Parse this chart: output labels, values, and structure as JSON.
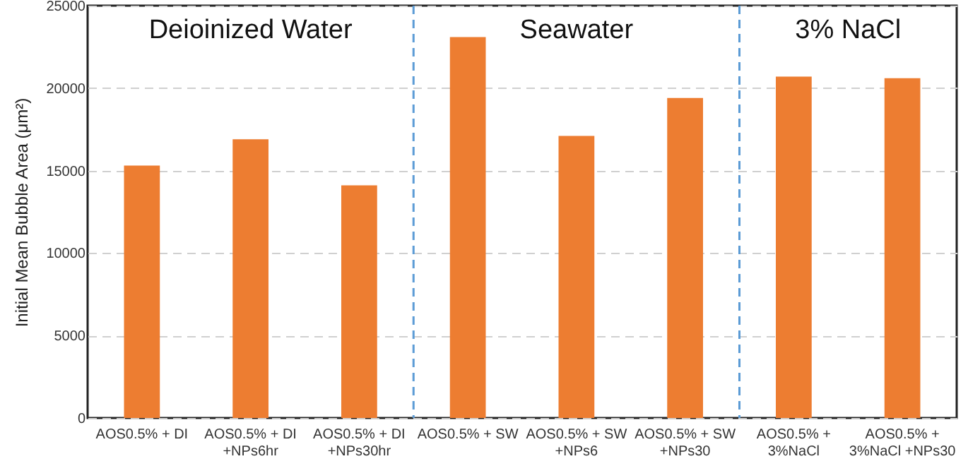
{
  "chart_data": {
    "type": "bar",
    "ylabel": "Initial Mean Bubble Area (μm²)",
    "categories": [
      "AOS0.5% + DI",
      "AOS0.5% + DI\n+NPs6hr",
      "AOS0.5% + DI\n+NPs30hr",
      "AOS0.5% + SW",
      "AOS0.5% + SW\n+NPs6",
      "AOS0.5% + SW\n+NPs30",
      "AOS0.5% +\n3%NaCl",
      "AOS0.5% +\n3%NaCl  +NPs30"
    ],
    "values": [
      15300,
      16900,
      14100,
      23100,
      17100,
      19400,
      20700,
      20600
    ],
    "color": "#ed7d31",
    "ylim": [
      0,
      25000
    ],
    "yticks": [
      0,
      5000,
      10000,
      15000,
      20000,
      25000
    ],
    "grid": "y",
    "annotations": [
      "Deioinized Water",
      "Seawater",
      "3% NaCl"
    ]
  }
}
